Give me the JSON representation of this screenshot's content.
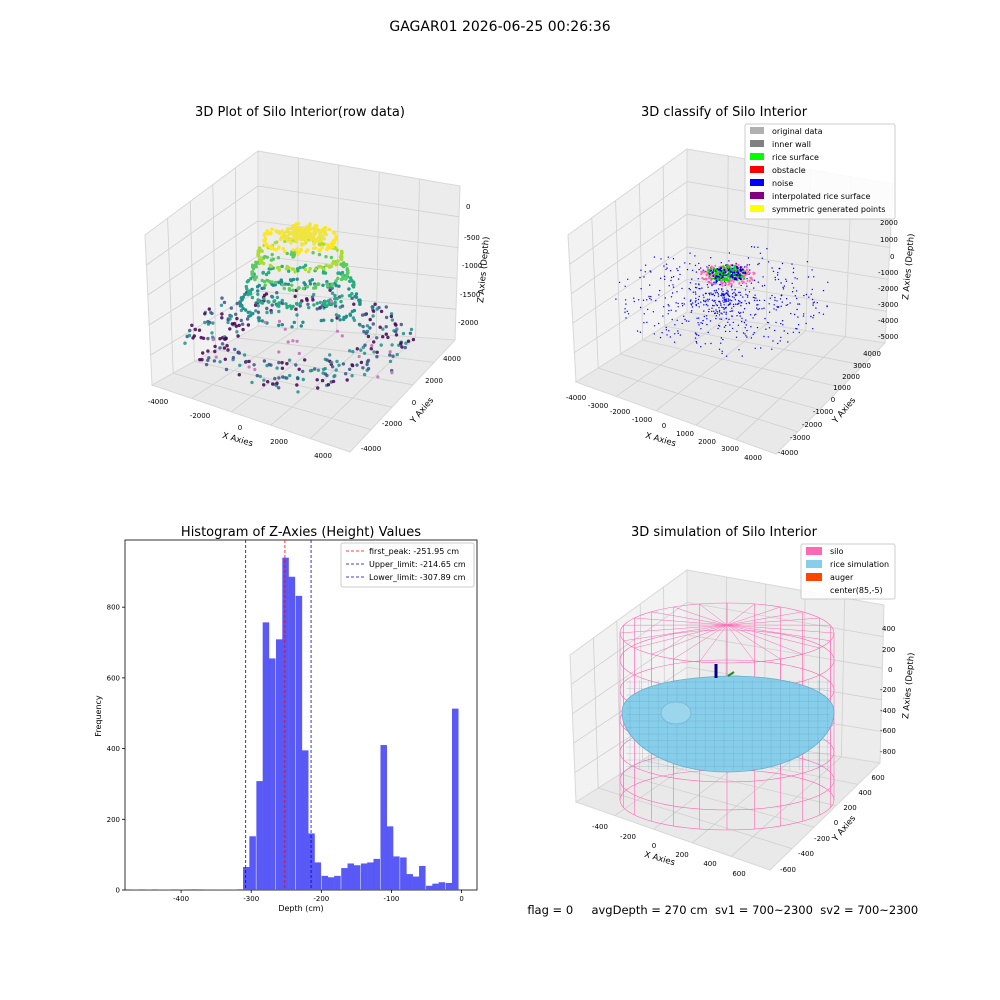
{
  "figure_title": "GAGAR01 2026-06-25 00:26:36",
  "footer": {
    "flag": "flag = 0",
    "avg_depth": "avgDepth = 270 cm",
    "sv1": "sv1 = 700~2300",
    "sv2": "sv2 = 700~2300"
  },
  "colors": {
    "hist_bar": "#5050f5",
    "peak_line": "#ff0000",
    "limit_line": "#0000cc",
    "silo": "#ff69b4",
    "rice": "#87ceeb",
    "auger": "#ff4500",
    "noise": "#0000ff",
    "rice_surface": "#00ff00"
  },
  "chart_data": [
    {
      "type": "scatter",
      "title": "3D Plot of Silo Interior(row data)",
      "xlabel": "X Axies",
      "ylabel": "Y Axies",
      "zlabel": "Z Axies (Depth)",
      "x_ticks": [
        "-4000",
        "-2000",
        "0",
        "2000",
        "4000"
      ],
      "y_ticks": [
        "-4000",
        "-2000",
        "0",
        "2000",
        "4000"
      ],
      "z_ticks": [
        "0",
        "-500",
        "-1000",
        "-1500",
        "-2000"
      ],
      "xlim": [
        -4500,
        4500
      ],
      "ylim": [
        -4500,
        4500
      ],
      "zlim": [
        -2300,
        0
      ],
      "colormap": "viridis"
    },
    {
      "type": "scatter",
      "title": "3D classify of Silo Interior",
      "xlabel": "X Axies",
      "ylabel": "Y Axies",
      "zlabel": "Z Axies (Depth)",
      "x_ticks": [
        "-4000",
        "-3000",
        "-2000",
        "-1000",
        "0",
        "1000",
        "2000",
        "3000",
        "4000"
      ],
      "y_ticks": [
        "-4000",
        "-3000",
        "-2000",
        "-1000",
        "0",
        "1000",
        "2000",
        "3000",
        "4000"
      ],
      "z_ticks": [
        "2000",
        "1000",
        "0",
        "-1000",
        "-2000",
        "-3000",
        "-4000",
        "-5000"
      ],
      "legend_position": "top-right",
      "legend": [
        {
          "label": "original data",
          "color": "#b0b0b0"
        },
        {
          "label": "inner wall",
          "color": "#808080"
        },
        {
          "label": "rice surface",
          "color": "#00ff00"
        },
        {
          "label": "obstacle",
          "color": "#ff0000"
        },
        {
          "label": "noise",
          "color": "#0000ff"
        },
        {
          "label": "interpolated rice surface",
          "color": "#800080"
        },
        {
          "label": "symmetric generated points",
          "color": "#ffff00"
        }
      ]
    },
    {
      "type": "bar",
      "title": "Histogram of Z-Axies (Height) Values",
      "xlabel": "Depth (cm)",
      "ylabel": "Frequency",
      "xlim": [
        -480,
        22
      ],
      "ylim": [
        0,
        990
      ],
      "x_ticks": [
        -400,
        -300,
        -200,
        -100,
        0
      ],
      "y_ticks": [
        0,
        200,
        400,
        600,
        800
      ],
      "bin_width": 9.3,
      "bins": [
        {
          "x": -465,
          "value": 1
        },
        {
          "x": -446,
          "value": 1
        },
        {
          "x": -428,
          "value": 1
        },
        {
          "x": -419,
          "value": 1
        },
        {
          "x": -400,
          "value": 1
        },
        {
          "x": -381,
          "value": 2
        },
        {
          "x": -363,
          "value": 1
        },
        {
          "x": -353,
          "value": 1
        },
        {
          "x": -344,
          "value": 1
        },
        {
          "x": -335,
          "value": 1
        },
        {
          "x": -325,
          "value": 1
        },
        {
          "x": -316,
          "value": 2
        },
        {
          "x": -307,
          "value": 65
        },
        {
          "x": -298,
          "value": 152
        },
        {
          "x": -288,
          "value": 308
        },
        {
          "x": -279,
          "value": 757
        },
        {
          "x": -270,
          "value": 655
        },
        {
          "x": -260,
          "value": 709
        },
        {
          "x": -251,
          "value": 940
        },
        {
          "x": -242,
          "value": 886
        },
        {
          "x": -232,
          "value": 832
        },
        {
          "x": -223,
          "value": 395
        },
        {
          "x": -214,
          "value": 160
        },
        {
          "x": -205,
          "value": 78
        },
        {
          "x": -195,
          "value": 40
        },
        {
          "x": -186,
          "value": 36
        },
        {
          "x": -177,
          "value": 40
        },
        {
          "x": -167,
          "value": 62
        },
        {
          "x": -158,
          "value": 75
        },
        {
          "x": -149,
          "value": 70
        },
        {
          "x": -139,
          "value": 75
        },
        {
          "x": -130,
          "value": 78
        },
        {
          "x": -121,
          "value": 88
        },
        {
          "x": -111,
          "value": 410
        },
        {
          "x": -102,
          "value": 180
        },
        {
          "x": -93,
          "value": 95
        },
        {
          "x": -83,
          "value": 92
        },
        {
          "x": -74,
          "value": 45
        },
        {
          "x": -65,
          "value": 38
        },
        {
          "x": -56,
          "value": 68
        },
        {
          "x": -46,
          "value": 12
        },
        {
          "x": -37,
          "value": 18
        },
        {
          "x": -28,
          "value": 22
        },
        {
          "x": -18,
          "value": 20
        },
        {
          "x": -9,
          "value": 513
        }
      ],
      "lines": [
        {
          "label": "first_peak: -251.95 cm",
          "x": -251.95,
          "color": "#ff0000"
        },
        {
          "label": "Upper_limit: -214.65 cm",
          "x": -214.65,
          "color": "#0000cc"
        },
        {
          "label": "Lower_limit: -307.89 cm",
          "x": -307.89,
          "color": "#0000cc"
        }
      ],
      "legend_position": "top-right"
    },
    {
      "type": "other",
      "title": "3D simulation of Silo Interior",
      "xlabel": "X Axies",
      "ylabel": "Y Axies",
      "zlabel": "Z Axies (Depth)",
      "x_ticks": [
        "-400",
        "-200",
        "0",
        "200",
        "400",
        "600"
      ],
      "y_ticks": [
        "600",
        "400",
        "200",
        "0",
        "-200",
        "-400",
        "-600"
      ],
      "z_ticks": [
        "400",
        "200",
        "0",
        "-200",
        "-400",
        "-600",
        "-800"
      ],
      "legend_position": "top-right",
      "legend": [
        {
          "label": "silo",
          "color": "#ff69b4"
        },
        {
          "label": "rice simulation",
          "color": "#87ceeb"
        },
        {
          "label": "auger",
          "color": "#ff4500"
        },
        {
          "label": "center(85,-5)",
          "color": ""
        }
      ]
    }
  ]
}
